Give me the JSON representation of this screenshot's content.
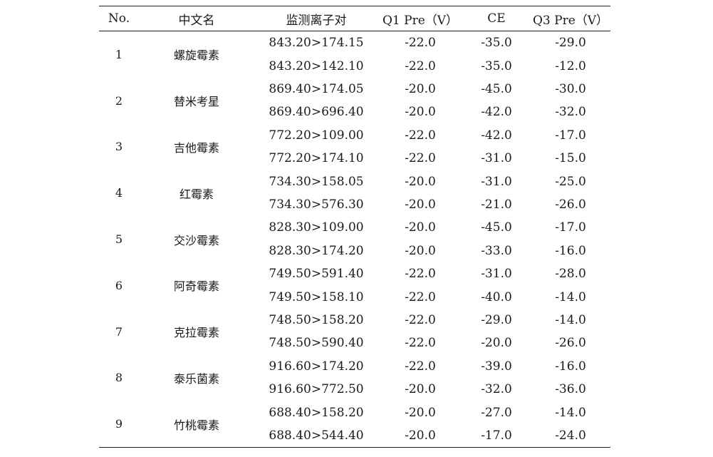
{
  "headers": [
    "No.",
    "中文名",
    "监测离子对",
    "Q1 Pre（V）",
    "CE",
    "Q3 Pre（V）"
  ],
  "rows": [
    {
      "no": "1",
      "name": "螺旋霉素",
      "pairs": [
        {
          "ion": "843.20>174.15",
          "q1": "-22.0",
          "ce": "-35.0",
          "q3": "-29.0"
        },
        {
          "ion": "843.20>142.10",
          "q1": "-22.0",
          "ce": "-35.0",
          "q3": "-12.0"
        }
      ]
    },
    {
      "no": "2",
      "name": "替米考星",
      "pairs": [
        {
          "ion": "869.40>174.05",
          "q1": "-20.0",
          "ce": "-45.0",
          "q3": "-30.0"
        },
        {
          "ion": "869.40>696.40",
          "q1": "-20.0",
          "ce": "-42.0",
          "q3": "-32.0"
        }
      ]
    },
    {
      "no": "3",
      "name": "吉他霉素",
      "pairs": [
        {
          "ion": "772.20>109.00",
          "q1": "-22.0",
          "ce": "-42.0",
          "q3": "-17.0"
        },
        {
          "ion": "772.20>174.10",
          "q1": "-22.0",
          "ce": "-31.0",
          "q3": "-15.0"
        }
      ]
    },
    {
      "no": "4",
      "name": "红霉素",
      "pairs": [
        {
          "ion": "734.30>158.05",
          "q1": "-20.0",
          "ce": "-31.0",
          "q3": "-25.0"
        },
        {
          "ion": "734.30>576.30",
          "q1": "-20.0",
          "ce": "-21.0",
          "q3": "-26.0"
        }
      ]
    },
    {
      "no": "5",
      "name": "交沙霉素",
      "pairs": [
        {
          "ion": "828.30>109.00",
          "q1": "-20.0",
          "ce": "-45.0",
          "q3": "-17.0"
        },
        {
          "ion": "828.30>174.20",
          "q1": "-20.0",
          "ce": "-33.0",
          "q3": "-16.0"
        }
      ]
    },
    {
      "no": "6",
      "name": "阿奇霉素",
      "pairs": [
        {
          "ion": "749.50>591.40",
          "q1": "-22.0",
          "ce": "-31.0",
          "q3": "-28.0"
        },
        {
          "ion": "749.50>158.10",
          "q1": "-22.0",
          "ce": "-40.0",
          "q3": "-14.0"
        }
      ]
    },
    {
      "no": "7",
      "name": "克拉霉素",
      "pairs": [
        {
          "ion": "748.50>158.20",
          "q1": "-22.0",
          "ce": "-29.0",
          "q3": "-14.0"
        },
        {
          "ion": "748.50>590.40",
          "q1": "-22.0",
          "ce": "-20.0",
          "q3": "-26.0"
        }
      ]
    },
    {
      "no": "8",
      "name": "泰乐菌素",
      "pairs": [
        {
          "ion": "916.60>174.20",
          "q1": "-22.0",
          "ce": "-39.0",
          "q3": "-16.0"
        },
        {
          "ion": "916.60>772.50",
          "q1": "-20.0",
          "ce": "-32.0",
          "q3": "-36.0"
        }
      ]
    },
    {
      "no": "9",
      "name": "竹桃霉素",
      "pairs": [
        {
          "ion": "688.40>158.20",
          "q1": "-20.0",
          "ce": "-27.0",
          "q3": "-14.0"
        },
        {
          "ion": "688.40>544.40",
          "q1": "-20.0",
          "ce": "-17.0",
          "q3": "-24.0"
        }
      ]
    }
  ]
}
